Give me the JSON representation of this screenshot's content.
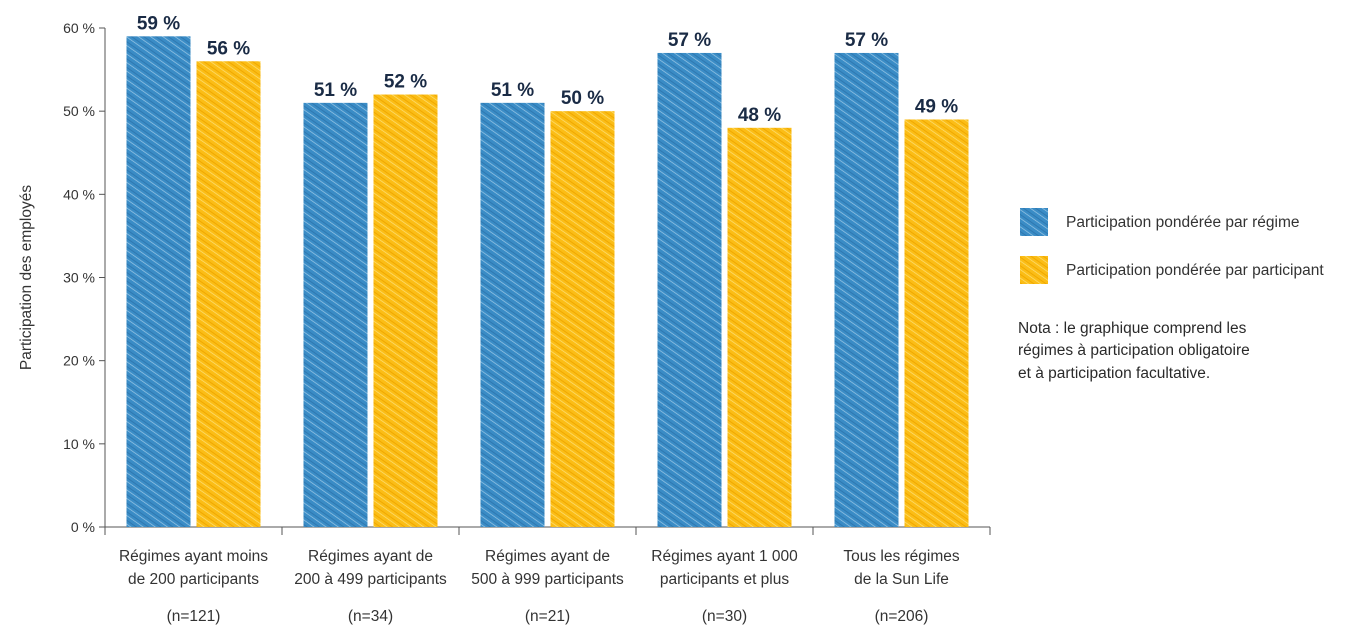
{
  "chart_data": {
    "type": "bar",
    "ylabel": "Participation des employés",
    "ylim": [
      0,
      60
    ],
    "yticks": [
      0,
      10,
      20,
      30,
      40,
      50,
      60
    ],
    "ytick_labels": [
      "0 %",
      "10 %",
      "20 %",
      "30 %",
      "40 %",
      "50 %",
      "60 %"
    ],
    "categories": [
      {
        "label_line1": "Régimes ayant moins",
        "label_line2": "de 200 participants",
        "n": "(n=121)"
      },
      {
        "label_line1": "Régimes ayant de",
        "label_line2": "200 à 499 participants",
        "n": "(n=34)"
      },
      {
        "label_line1": "Régimes ayant de",
        "label_line2": "500 à 999 participants",
        "n": "(n=21)"
      },
      {
        "label_line1": "Régimes ayant 1 000",
        "label_line2": "participants et plus",
        "n": "(n=30)"
      },
      {
        "label_line1": "Tous les régimes",
        "label_line2": "de la Sun Life",
        "n": "(n=206)"
      }
    ],
    "series": [
      {
        "name": "Participation pondérée par régime",
        "color": "#3a8cc6",
        "values": [
          59,
          51,
          51,
          57,
          57
        ],
        "value_labels": [
          "59 %",
          "51 %",
          "51 %",
          "57 %",
          "57 %"
        ]
      },
      {
        "name": "Participation pondérée par participant",
        "color": "#fbbd16",
        "values": [
          56,
          52,
          50,
          48,
          49
        ],
        "value_labels": [
          "56 %",
          "52 %",
          "50 %",
          "48 %",
          "49 %"
        ]
      }
    ],
    "legend_position": "right",
    "grid": false
  },
  "note": {
    "lines": [
      "Nota : le graphique comprend les",
      "régimes à participation obligatoire",
      "et à participation facultative."
    ]
  }
}
